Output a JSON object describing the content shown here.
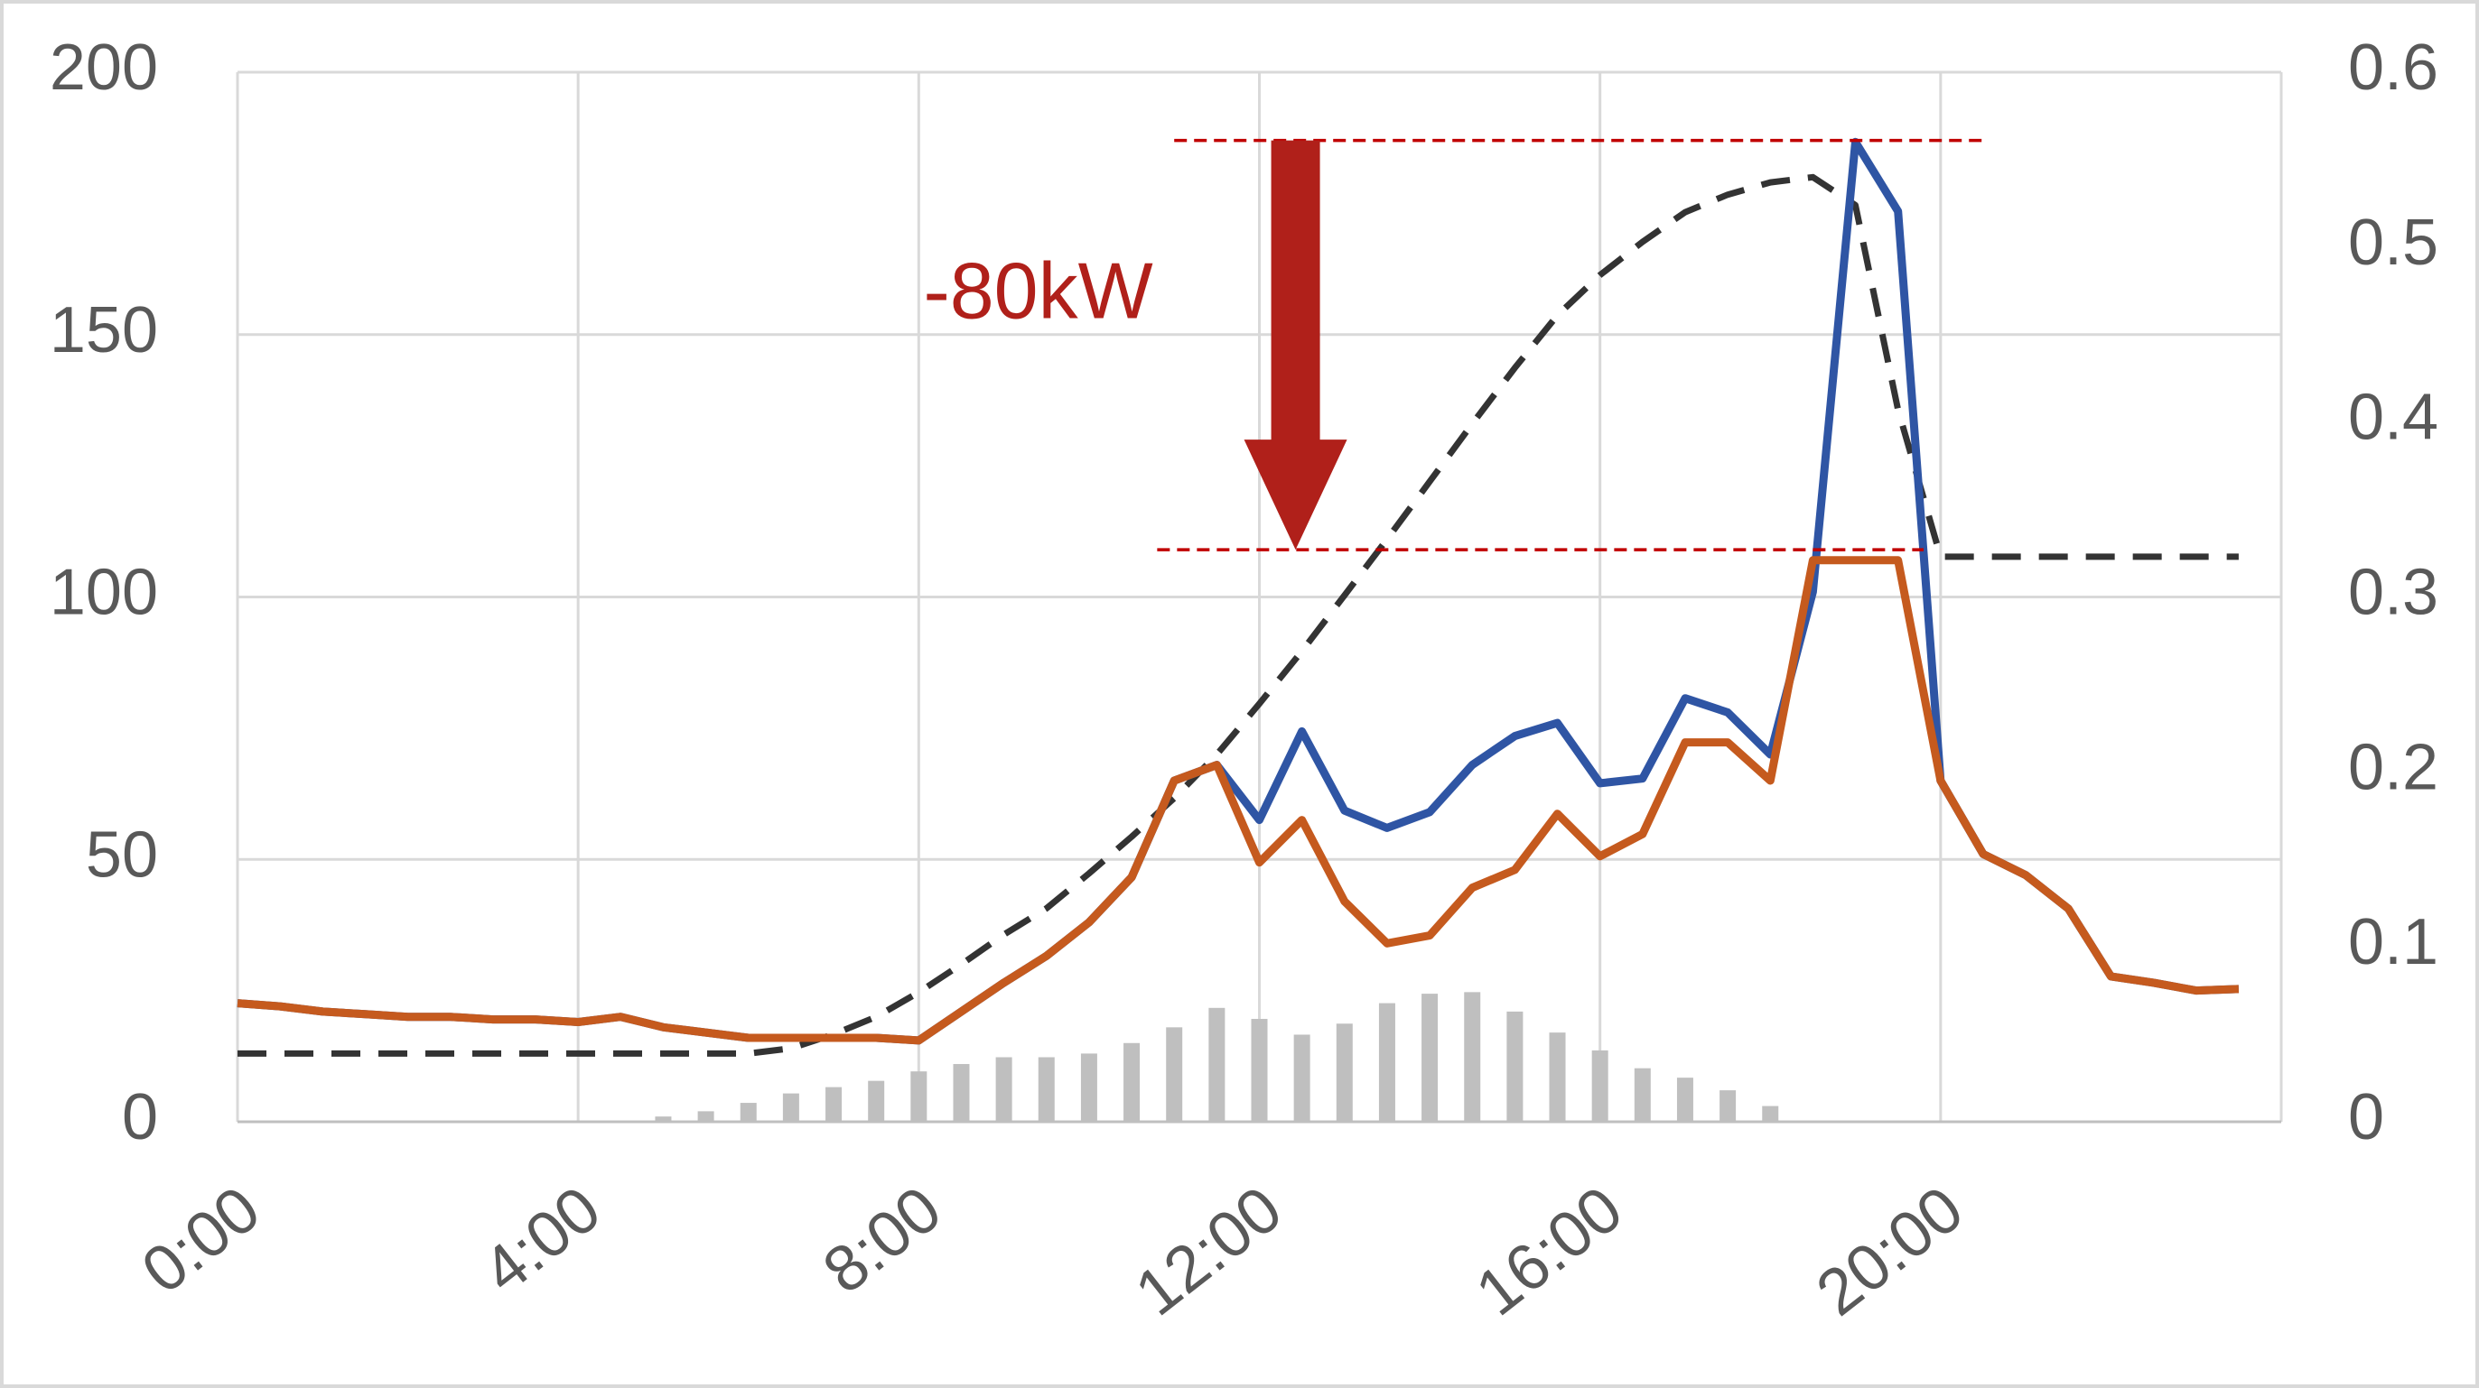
{
  "chart_data": {
    "type": "line",
    "annotation": "-80kW",
    "annotation_color": "#b0201a",
    "grid": true,
    "xlim": [
      0,
      24
    ],
    "xticks": [
      {
        "value": 0,
        "label": "0:00"
      },
      {
        "value": 4,
        "label": "4:00"
      },
      {
        "value": 8,
        "label": "8:00"
      },
      {
        "value": 12,
        "label": "12:00"
      },
      {
        "value": 16,
        "label": "16:00"
      },
      {
        "value": 20,
        "label": "20:00"
      }
    ],
    "ylim": [
      0,
      200
    ],
    "yticks": [
      0,
      50,
      100,
      150,
      200
    ],
    "y2lim": [
      0,
      0.6
    ],
    "y2ticks": [
      0,
      0.1,
      0.2,
      0.3,
      0.4,
      0.5,
      0.6
    ],
    "reference_lines": [
      {
        "y": 187,
        "x": [
          11,
          20.5
        ],
        "color": "#c00000"
      },
      {
        "y": 109,
        "x": [
          10.8,
          19.8
        ],
        "color": "#c00000"
      }
    ],
    "x": [
      0,
      0.5,
      1,
      1.5,
      2,
      2.5,
      3,
      3.5,
      4,
      4.5,
      5,
      5.5,
      6,
      6.5,
      7,
      7.5,
      8,
      8.5,
      9,
      9.5,
      10,
      10.5,
      11,
      11.5,
      12,
      12.5,
      13,
      13.5,
      14,
      14.5,
      15,
      15.5,
      16,
      16.5,
      17,
      17.5,
      18,
      18.5,
      19,
      19.5,
      20,
      20.5,
      21,
      21.5,
      22,
      22.5,
      23,
      23.5
    ],
    "series": [
      {
        "type": "bar",
        "color": "#bfbfbf",
        "x": [
          5,
          5.5,
          6,
          6.5,
          7,
          7.5,
          8,
          8.5,
          9,
          9.5,
          10,
          10.5,
          11,
          11.5,
          12,
          12.5,
          13,
          13.5,
          14,
          14.5,
          15,
          15.5,
          16,
          16.5,
          17,
          17.5,
          18
        ],
        "values": [
          1,
          2,
          3.6,
          5.4,
          6.6,
          7.8,
          9.6,
          11,
          12.3,
          12.3,
          13,
          15,
          18,
          21.7,
          19.6,
          16.6,
          18.7,
          22.6,
          24.4,
          24.7,
          21,
          17,
          13.6,
          10.2,
          8.4,
          6,
          3
        ]
      },
      {
        "type": "line",
        "axis": "y2",
        "dashed": true,
        "color": "#333333",
        "values": [
          0.039,
          0.039,
          0.039,
          0.039,
          0.039,
          0.039,
          0.039,
          0.039,
          0.039,
          0.039,
          0.039,
          0.039,
          0.039,
          0.042,
          0.05,
          0.06,
          0.074,
          0.09,
          0.107,
          0.122,
          0.142,
          0.163,
          0.185,
          0.21,
          0.239,
          0.269,
          0.301,
          0.333,
          0.366,
          0.399,
          0.431,
          0.461,
          0.484,
          0.503,
          0.52,
          0.53,
          0.537,
          0.54,
          0.524,
          0.407,
          0.323,
          0.323,
          0.323,
          0.323,
          0.323,
          0.323,
          0.323,
          0.323
        ]
      },
      {
        "type": "line",
        "color": "#2f55a4",
        "values": [
          22.6,
          22,
          21,
          20.5,
          20,
          20,
          19.5,
          19.5,
          19,
          20,
          18,
          17,
          16,
          16,
          16,
          16,
          15.5,
          21,
          26.5,
          31.6,
          38,
          46.6,
          65,
          68,
          57.5,
          74.4,
          59.3,
          56,
          59,
          68,
          73.5,
          76,
          64.5,
          65.4,
          80.7,
          78,
          70,
          101,
          186.7,
          173.5,
          65,
          51,
          47,
          40.6,
          27.7,
          26.5,
          25,
          25.3
        ]
      },
      {
        "type": "line",
        "color": "#c55a1e",
        "values": [
          22.6,
          22,
          21,
          20.5,
          20,
          20,
          19.5,
          19.5,
          19,
          20,
          18,
          17,
          16,
          16,
          16,
          16,
          15.5,
          21,
          26.5,
          31.6,
          38,
          46.6,
          65,
          68,
          49.4,
          57.5,
          42,
          34,
          35.5,
          44.6,
          48,
          58.7,
          50.6,
          54.8,
          72.3,
          72.3,
          65,
          107,
          107,
          107,
          65,
          51,
          47,
          40.6,
          27.7,
          26.5,
          25,
          25.3
        ]
      }
    ]
  }
}
